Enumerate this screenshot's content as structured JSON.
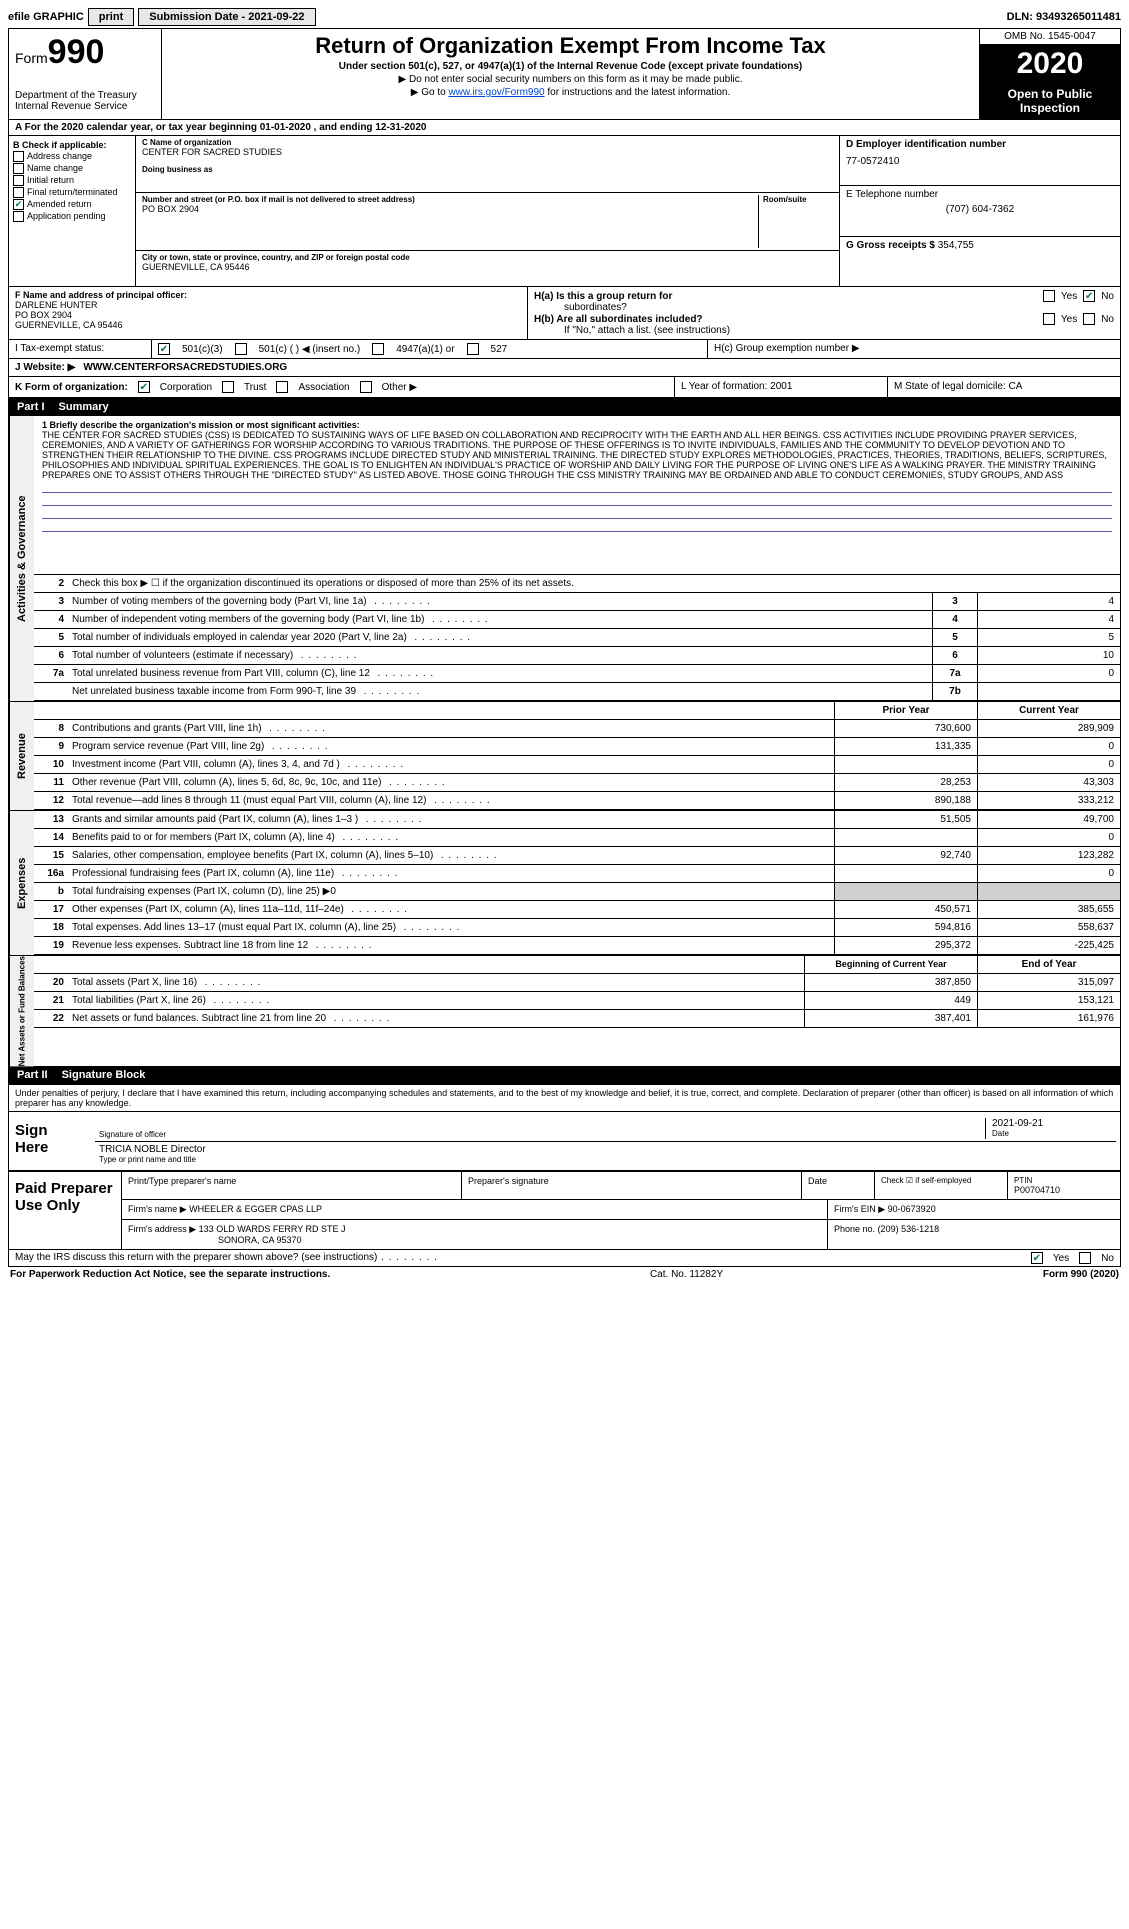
{
  "topbar": {
    "efile": "efile GRAPHIC",
    "print": "print",
    "submission_label": "Submission Date - 2021-09-22",
    "dln": "DLN: 93493265011481"
  },
  "header": {
    "form_word": "Form",
    "form_num": "990",
    "dept": "Department of the Treasury\nInternal Revenue Service",
    "title": "Return of Organization Exempt From Income Tax",
    "sub1": "Under section 501(c), 527, or 4947(a)(1) of the Internal Revenue Code (except private foundations)",
    "sub2": "Do not enter social security numbers on this form as it may be made public.",
    "sub3_pre": "Go to ",
    "sub3_link": "www.irs.gov/Form990",
    "sub3_post": " for instructions and the latest information.",
    "omb": "OMB No. 1545-0047",
    "year": "2020",
    "inspect": "Open to Public Inspection"
  },
  "period": "A For the 2020 calendar year, or tax year beginning 01-01-2020      , and ending 12-31-2020",
  "checkB": {
    "label": "B Check if applicable:",
    "items": [
      "Address change",
      "Name change",
      "Initial return",
      "Final return/terminated",
      "Amended return",
      "Application pending"
    ],
    "checked_idx": 4
  },
  "colC": {
    "name_lbl": "C Name of organization",
    "name": "CENTER FOR SACRED STUDIES",
    "dba_lbl": "Doing business as",
    "addr_lbl": "Number and street (or P.O. box if mail is not delivered to street address)",
    "room_lbl": "Room/suite",
    "addr": "PO BOX 2904",
    "city_lbl": "City or town, state or province, country, and ZIP or foreign postal code",
    "city": "GUERNEVILLE, CA  95446"
  },
  "colD": {
    "ein_lbl": "D Employer identification number",
    "ein": "77-0572410",
    "phone_lbl": "E Telephone number",
    "phone": "(707) 604-7362",
    "gross_lbl": "G Gross receipts $",
    "gross": "354,755"
  },
  "rowF": {
    "lbl": "F  Name and address of principal officer:",
    "name": "DARLENE HUNTER",
    "addr1": "PO BOX 2904",
    "addr2": "GUERNEVILLE, CA  95446"
  },
  "rowH": {
    "ha": "H(a)  Is this a group return for",
    "ha2": "subordinates?",
    "hb": "H(b)  Are all subordinates included?",
    "hb2": "If \"No,\" attach a list. (see instructions)",
    "hc": "H(c)  Group exemption number ▶",
    "yes": "Yes",
    "no": "No"
  },
  "rowI": {
    "lbl": "I  Tax-exempt status:",
    "o1": "501(c)(3)",
    "o2": "501(c) (    ) ◀ (insert no.)",
    "o3": "4947(a)(1) or",
    "o4": "527"
  },
  "rowJ": {
    "lbl": "J  Website: ▶",
    "val": "WWW.CENTERFORSACREDSTUDIES.ORG"
  },
  "rowK": {
    "lbl": "K Form of organization:",
    "o1": "Corporation",
    "o2": "Trust",
    "o3": "Association",
    "o4": "Other ▶",
    "l": "L Year of formation: 2001",
    "m": "M State of legal domicile: CA"
  },
  "part1": {
    "hdr_part": "Part I",
    "hdr_title": "Summary",
    "tab1": "Activities & Governance",
    "tab2": "Revenue",
    "tab3": "Expenses",
    "tab4": "Net Assets or Fund Balances",
    "line1_lbl": "1  Briefly describe the organization's mission or most significant activities:",
    "mission": "THE CENTER FOR SACRED STUDIES (CSS) IS DEDICATED TO SUSTAINING WAYS OF LIFE BASED ON COLLABORATION AND RECIPROCITY WITH THE EARTH AND ALL HER BEINGS. CSS ACTIVITIES INCLUDE PROVIDING PRAYER SERVICES, CEREMONIES, AND A VARIETY OF GATHERINGS FOR WORSHIP ACCORDING TO VARIOUS TRADITIONS. THE PURPOSE OF THESE OFFERINGS IS TO INVITE INDIVIDUALS, FAMILIES AND THE COMMUNITY TO DEVELOP DEVOTION AND TO STRENGTHEN THEIR RELATIONSHIP TO THE DIVINE. CSS PROGRAMS INCLUDE DIRECTED STUDY AND MINISTERIAL TRAINING. THE DIRECTED STUDY EXPLORES METHODOLOGIES, PRACTICES, THEORIES, TRADITIONS, BELIEFS, SCRIPTURES, PHILOSOPHIES AND INDIVIDUAL SPIRITUAL EXPERIENCES. THE GOAL IS TO ENLIGHTEN AN INDIVIDUAL'S PRACTICE OF WORSHIP AND DAILY LIVING FOR THE PURPOSE OF LIVING ONE'S LIFE AS A WALKING PRAYER. THE MINISTRY TRAINING PREPARES ONE TO ASSIST OTHERS THROUGH THE \"DIRECTED STUDY\" AS LISTED ABOVE. THOSE GOING THROUGH THE CSS MINISTRY TRAINING MAY BE ORDAINED AND ABLE TO CONDUCT CEREMONIES, STUDY GROUPS, AND ASS",
    "line2": "Check this box ▶ ☐ if the organization discontinued its operations or disposed of more than 25% of its net assets.",
    "gov": [
      {
        "n": "3",
        "d": "Number of voting members of the governing body (Part VI, line 1a)",
        "b": "3",
        "v": "4"
      },
      {
        "n": "4",
        "d": "Number of independent voting members of the governing body (Part VI, line 1b)",
        "b": "4",
        "v": "4"
      },
      {
        "n": "5",
        "d": "Total number of individuals employed in calendar year 2020 (Part V, line 2a)",
        "b": "5",
        "v": "5"
      },
      {
        "n": "6",
        "d": "Total number of volunteers (estimate if necessary)",
        "b": "6",
        "v": "10"
      },
      {
        "n": "7a",
        "d": "Total unrelated business revenue from Part VIII, column (C), line 12",
        "b": "7a",
        "v": "0"
      },
      {
        "n": "",
        "d": "Net unrelated business taxable income from Form 990-T, line 39",
        "b": "7b",
        "v": ""
      }
    ],
    "col_prior": "Prior Year",
    "col_current": "Current Year",
    "rev": [
      {
        "n": "8",
        "d": "Contributions and grants (Part VIII, line 1h)",
        "p": "730,600",
        "c": "289,909"
      },
      {
        "n": "9",
        "d": "Program service revenue (Part VIII, line 2g)",
        "p": "131,335",
        "c": "0"
      },
      {
        "n": "10",
        "d": "Investment income (Part VIII, column (A), lines 3, 4, and 7d )",
        "p": "",
        "c": "0"
      },
      {
        "n": "11",
        "d": "Other revenue (Part VIII, column (A), lines 5, 6d, 8c, 9c, 10c, and 11e)",
        "p": "28,253",
        "c": "43,303"
      },
      {
        "n": "12",
        "d": "Total revenue—add lines 8 through 11 (must equal Part VIII, column (A), line 12)",
        "p": "890,188",
        "c": "333,212"
      }
    ],
    "exp": [
      {
        "n": "13",
        "d": "Grants and similar amounts paid (Part IX, column (A), lines 1–3 )",
        "p": "51,505",
        "c": "49,700"
      },
      {
        "n": "14",
        "d": "Benefits paid to or for members (Part IX, column (A), line 4)",
        "p": "",
        "c": "0"
      },
      {
        "n": "15",
        "d": "Salaries, other compensation, employee benefits (Part IX, column (A), lines 5–10)",
        "p": "92,740",
        "c": "123,282"
      },
      {
        "n": "16a",
        "d": "Professional fundraising fees (Part IX, column (A), line 11e)",
        "p": "",
        "c": "0"
      },
      {
        "n": "b",
        "d": "Total fundraising expenses (Part IX, column (D), line 25) ▶0",
        "p": "grey",
        "c": "grey"
      },
      {
        "n": "17",
        "d": "Other expenses (Part IX, column (A), lines 11a–11d, 11f–24e)",
        "p": "450,571",
        "c": "385,655"
      },
      {
        "n": "18",
        "d": "Total expenses. Add lines 13–17 (must equal Part IX, column (A), line 25)",
        "p": "594,816",
        "c": "558,637"
      },
      {
        "n": "19",
        "d": "Revenue less expenses. Subtract line 18 from line 12",
        "p": "295,372",
        "c": "-225,425"
      }
    ],
    "col_begin": "Beginning of Current Year",
    "col_end": "End of Year",
    "net": [
      {
        "n": "20",
        "d": "Total assets (Part X, line 16)",
        "p": "387,850",
        "c": "315,097"
      },
      {
        "n": "21",
        "d": "Total liabilities (Part X, line 26)",
        "p": "449",
        "c": "153,121"
      },
      {
        "n": "22",
        "d": "Net assets or fund balances. Subtract line 21 from line 20",
        "p": "387,401",
        "c": "161,976"
      }
    ]
  },
  "part2": {
    "hdr_part": "Part II",
    "hdr_title": "Signature Block",
    "decl": "Under penalties of perjury, I declare that I have examined this return, including accompanying schedules and statements, and to the best of my knowledge and belief, it is true, correct, and complete. Declaration of preparer (other than officer) is based on all information of which preparer has any knowledge.",
    "sign_here": "Sign Here",
    "sig_officer": "Signature of officer",
    "date": "Date",
    "date_val": "2021-09-21",
    "name_title": "TRICIA NOBLE  Director",
    "name_title_lbl": "Type or print name and title",
    "paid": "Paid Preparer Use Only",
    "p_name_lbl": "Print/Type preparer's name",
    "p_sig_lbl": "Preparer's signature",
    "p_date_lbl": "Date",
    "p_check": "Check ☑ if self-employed",
    "ptin_lbl": "PTIN",
    "ptin": "P00704710",
    "firm_name_lbl": "Firm's name    ▶",
    "firm_name": "WHEELER & EGGER CPAS LLP",
    "firm_ein_lbl": "Firm's EIN ▶",
    "firm_ein": "90-0673920",
    "firm_addr_lbl": "Firm's address ▶",
    "firm_addr": "133 OLD WARDS FERRY RD STE J",
    "firm_city": "SONORA, CA  95370",
    "firm_phone_lbl": "Phone no.",
    "firm_phone": "(209) 536-1218",
    "discuss": "May the IRS discuss this return with the preparer shown above? (see instructions)",
    "yes": "Yes",
    "no": "No"
  },
  "footer": {
    "left": "For Paperwork Reduction Act Notice, see the separate instructions.",
    "mid": "Cat. No. 11282Y",
    "right": "Form 990 (2020)"
  }
}
